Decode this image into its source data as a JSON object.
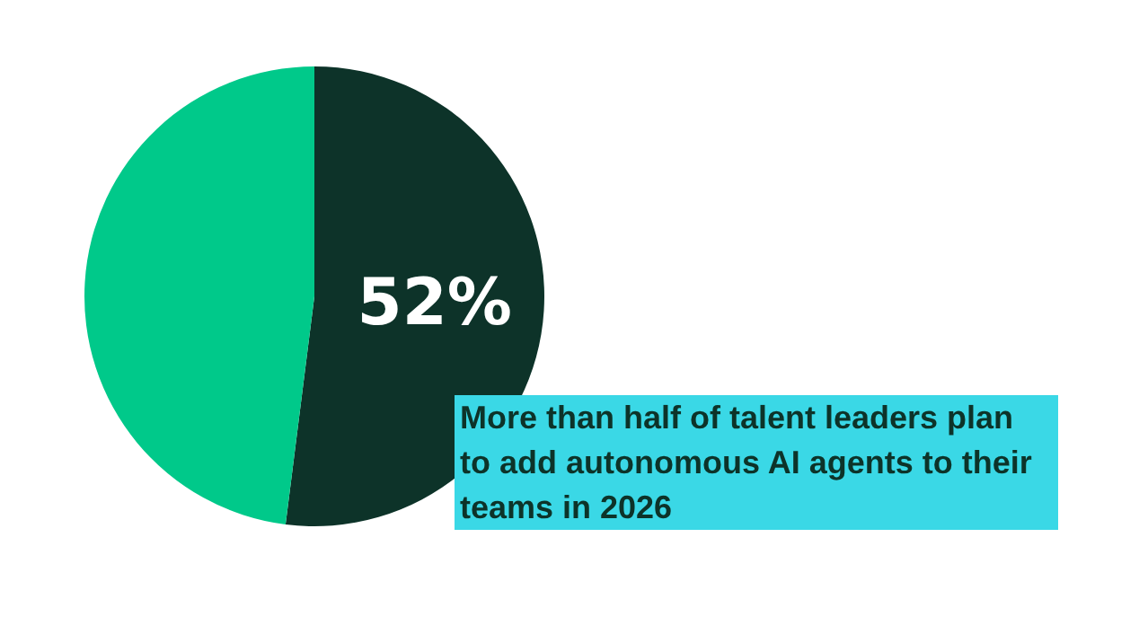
{
  "chart_data": {
    "type": "pie",
    "categories": [
      null,
      null
    ],
    "values": [
      52,
      48
    ],
    "colors": [
      "#0d3329",
      "#00c98a"
    ],
    "value_labels": [
      "52%",
      null
    ],
    "annotations": [
      "More than half of talent leaders plan to add autonomous AI agents to their teams in 2026"
    ]
  }
}
